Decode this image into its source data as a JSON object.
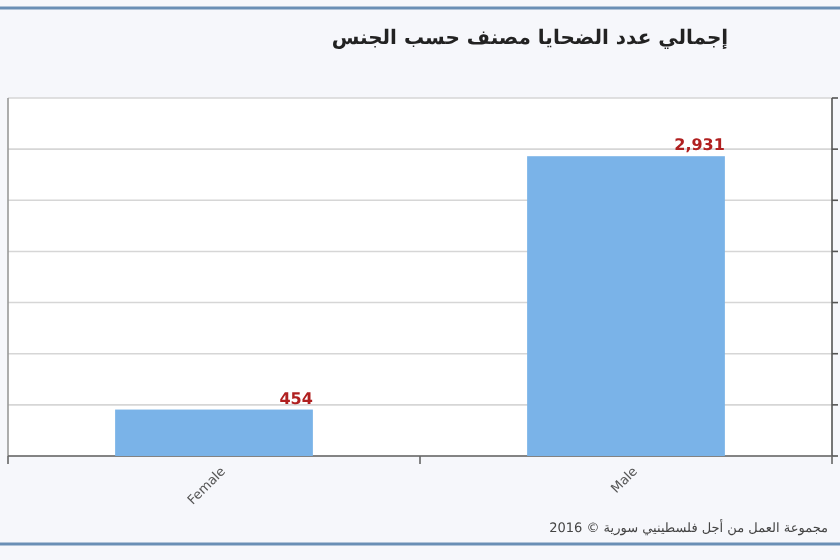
{
  "chart_data": {
    "type": "bar",
    "title": "إجمالي عدد الضحايا مصنف حسب الجنس",
    "categories": [
      "Female",
      "Male"
    ],
    "values": [
      454,
      2931
    ],
    "value_labels": [
      "454",
      "2,931"
    ],
    "color": "#7ab3e8",
    "ylim": [
      0,
      3500
    ],
    "yticks": [
      {
        "value": 0,
        "label": null
      },
      {
        "value": 500,
        "label": null
      },
      {
        "value": 1000,
        "label": null
      },
      {
        "value": 1500,
        "label": null
      },
      {
        "value": 2000,
        "label": null
      },
      {
        "value": 2500,
        "label": null
      },
      {
        "value": 3000,
        "label": null
      },
      {
        "value": 3500,
        "label": null
      }
    ],
    "grid": "y",
    "annotations": [
      "مجموعة العمل من أجل فلسطينيي سورية © 2016"
    ]
  }
}
